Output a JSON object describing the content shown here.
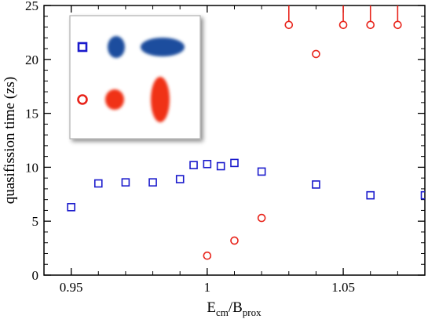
{
  "chart_data": {
    "type": "scatter",
    "title": "",
    "xlabel": {
      "main": "E",
      "sub1": "cm",
      "mid": "/B",
      "sub2": "prox"
    },
    "ylabel": "quasifission time (zs)",
    "xlim": [
      0.94,
      1.08
    ],
    "ylim": [
      0,
      25
    ],
    "xticks": [
      0.95,
      1.0,
      1.05
    ],
    "xtick_labels": [
      "0.95",
      "1",
      "1.05"
    ],
    "yticks": [
      0,
      5,
      10,
      15,
      20,
      25
    ],
    "ytick_labels": [
      "0",
      "5",
      "10",
      "15",
      "20",
      "25"
    ],
    "grid": false,
    "series": [
      {
        "marker": "square",
        "color": "#1a1acc",
        "x": [
          0.95,
          0.96,
          0.97,
          0.98,
          0.99,
          0.995,
          1.0,
          1.005,
          1.01,
          1.02,
          1.04,
          1.06,
          1.08
        ],
        "y": [
          6.3,
          8.5,
          8.6,
          8.6,
          8.9,
          10.2,
          10.3,
          10.1,
          10.4,
          9.6,
          8.4,
          7.4,
          7.4
        ]
      },
      {
        "marker": "circle",
        "color": "#e8231a",
        "x": [
          1.0,
          1.01,
          1.02,
          1.04
        ],
        "y": [
          1.8,
          3.2,
          5.3,
          20.5
        ]
      },
      {
        "marker": "circle-lower-limit",
        "color": "#e8231a",
        "x": [
          1.03,
          1.05,
          1.06,
          1.07
        ],
        "y": [
          23.2,
          23.2,
          23.2,
          23.2
        ]
      }
    ],
    "inset": {
      "rows": [
        {
          "marker": "square",
          "color": "#1a1acc",
          "shapes": [
            "prolate-small",
            "oblate-horizontal"
          ],
          "shape_color": "#1f4e9e"
        },
        {
          "marker": "circle",
          "color": "#e8231a",
          "shapes": [
            "sphere-small",
            "prolate-vertical"
          ],
          "shape_color": "#f03018"
        }
      ]
    }
  }
}
